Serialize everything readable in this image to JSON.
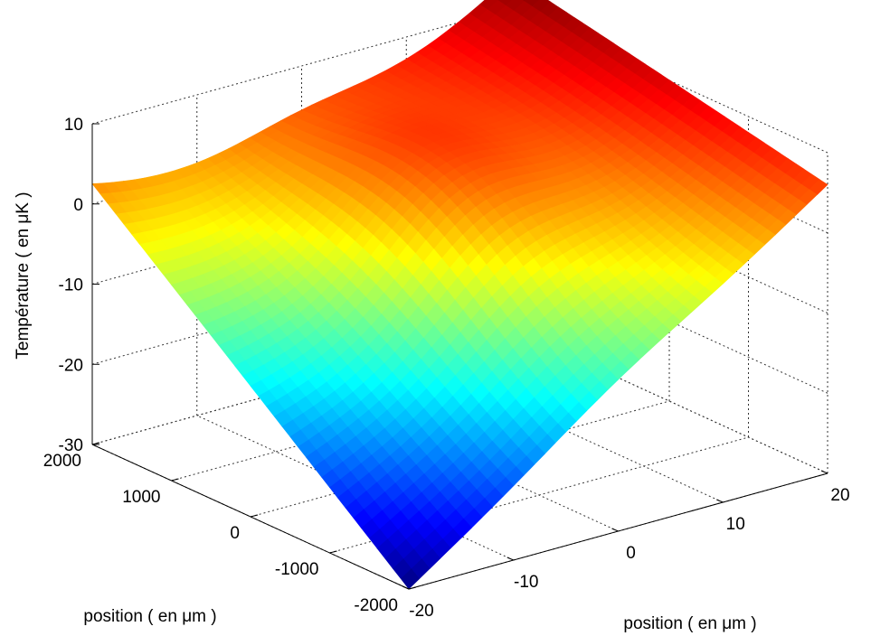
{
  "chart_data": {
    "type": "surface",
    "zlabel": "Température ( en  μK )",
    "xlabel": "position ( en μm )",
    "ylabel": "position ( en μm )",
    "x_range": [
      -20,
      20
    ],
    "y_range": [
      -2000,
      2000
    ],
    "z_range": [
      -30,
      10
    ],
    "x_ticks": [
      "-20",
      "-10",
      "0",
      "10",
      "20"
    ],
    "y_ticks": [
      "-2000",
      "-1000",
      "0",
      "1000",
      "2000"
    ],
    "z_ticks": [
      "-30",
      "-20",
      "-10",
      "0",
      "10"
    ],
    "grid": true,
    "colormap": "jet",
    "corner_values": {
      "x-20_y2000": 2.5,
      "x20_y2000": 14,
      "x20_y-2000": 6,
      "x-20_y-2000": -30
    },
    "min_value": -30,
    "max_value": 14
  }
}
